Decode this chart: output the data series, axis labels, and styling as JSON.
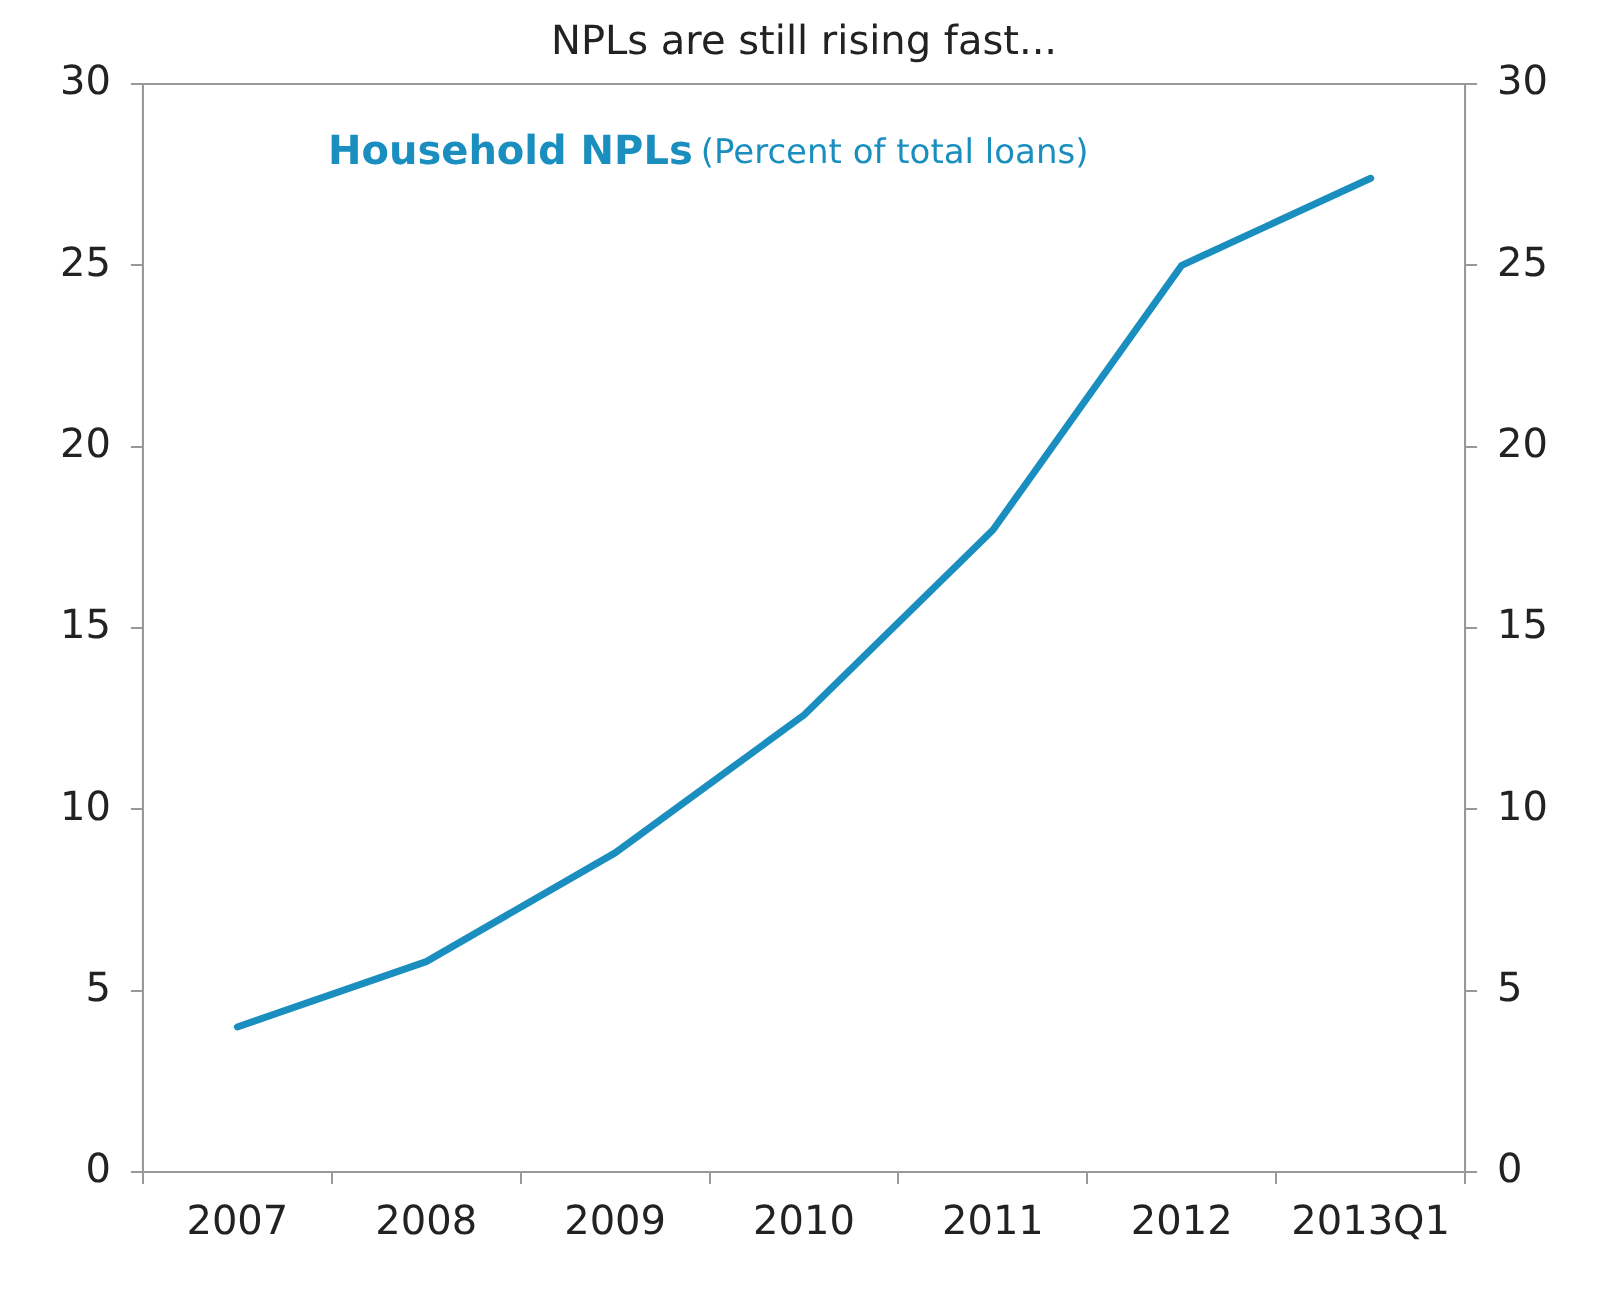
{
  "chart_data": {
    "type": "line",
    "title": "NPLs are still rising fast...",
    "categories": [
      "2007",
      "2008",
      "2009",
      "2010",
      "2011",
      "2012",
      "2013Q1"
    ],
    "series": [
      {
        "name": "Household NPLs",
        "color": "#1a8fbf",
        "values": [
          4.0,
          5.8,
          8.8,
          12.6,
          17.7,
          25.0,
          27.4
        ]
      }
    ],
    "annotations": [
      "(Percent of total loans)"
    ],
    "ylim": [
      0,
      30
    ],
    "yticks": [
      0,
      5,
      10,
      15,
      20,
      25,
      30
    ],
    "y2lim": [
      0,
      30
    ],
    "y2ticks": [
      0,
      5,
      10,
      15,
      20,
      25,
      30
    ],
    "grid": false,
    "legend": "top",
    "marker": "none",
    "line_style": "solid"
  }
}
